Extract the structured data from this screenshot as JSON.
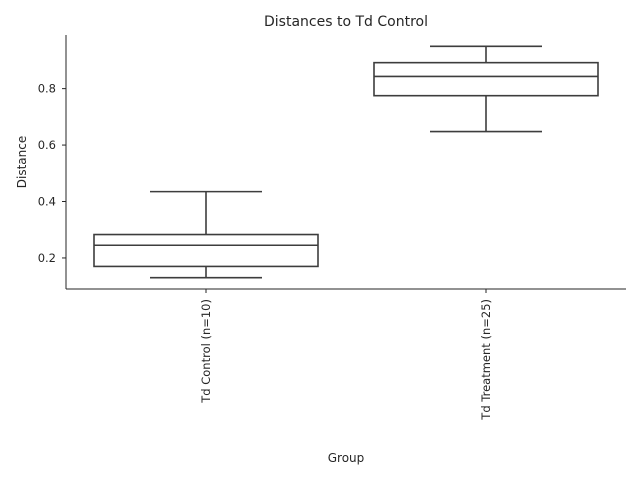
{
  "chart_data": {
    "type": "box",
    "title": "Distances to Td Control",
    "xlabel": "Group",
    "ylabel": "Distance",
    "ylim": [
      0.09,
      0.99
    ],
    "yticks": [
      0.2,
      0.4,
      0.6,
      0.8
    ],
    "ytick_labels": [
      "0.2",
      "0.4",
      "0.6",
      "0.8"
    ],
    "categories": [
      "Td Control (n=10)",
      "Td Treatment (n=25)"
    ],
    "boxes": [
      {
        "category": "Td Control (n=10)",
        "whisker_low": 0.13,
        "q1": 0.17,
        "median": 0.245,
        "q3": 0.283,
        "whisker_high": 0.435
      },
      {
        "category": "Td Treatment (n=25)",
        "whisker_low": 0.648,
        "q1": 0.775,
        "median": 0.843,
        "q3": 0.892,
        "whisker_high": 0.95
      }
    ],
    "grid": false,
    "colors": {
      "box_edge": "#3d3d3d",
      "box_fill": "#ffffff",
      "axis": "#262626"
    }
  }
}
